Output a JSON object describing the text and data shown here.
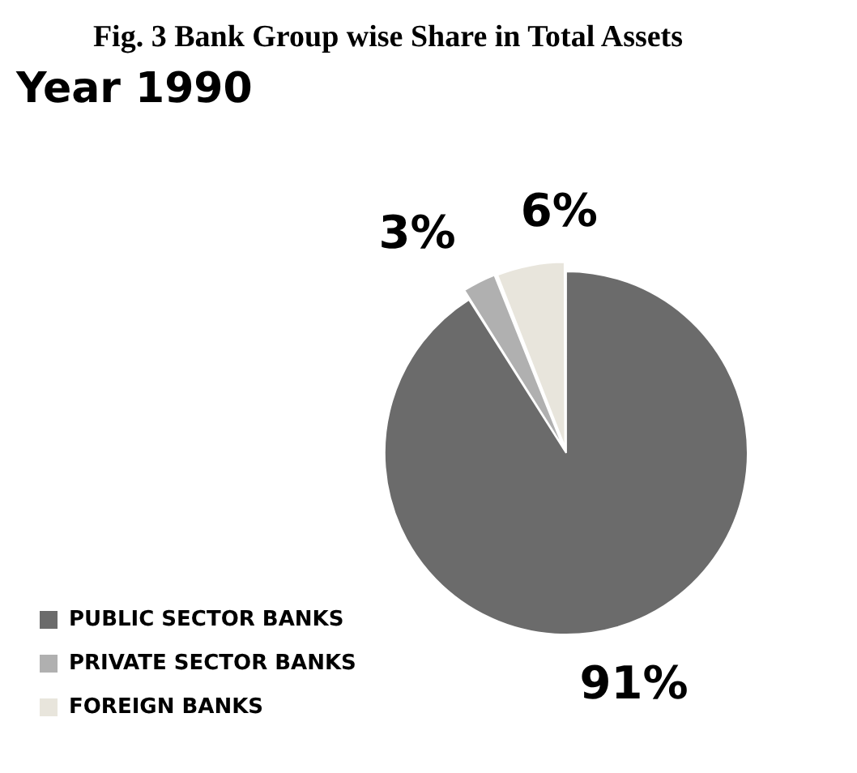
{
  "chart_data": {
    "type": "pie",
    "title": "Fig. 3 Bank Group wise Share in Total Assets",
    "subtitle": "Year 1990",
    "categories": [
      "PUBLIC SECTOR BANKS",
      "PRIVATE SECTOR BANKS",
      "FOREIGN BANKS"
    ],
    "values": [
      91,
      3,
      6
    ],
    "colors": [
      "#6b6b6b",
      "#b0b0b0",
      "#e8e5dc"
    ],
    "value_labels": [
      "91%",
      "3%",
      "6%"
    ],
    "legend": "bottom left"
  }
}
